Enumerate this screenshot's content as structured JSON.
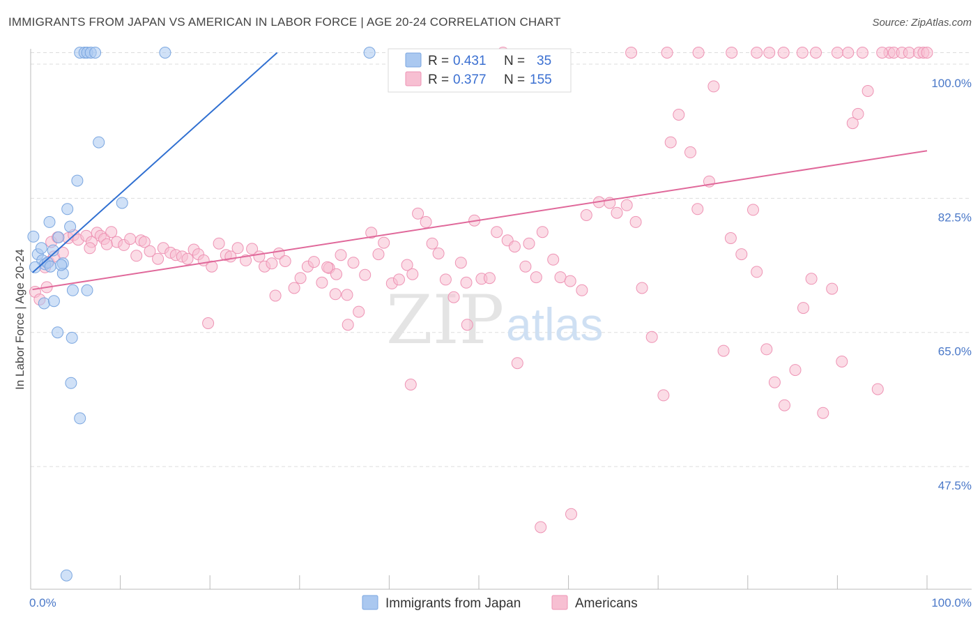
{
  "title": "IMMIGRANTS FROM JAPAN VS AMERICAN IN LABOR FORCE | AGE 20-24 CORRELATION CHART",
  "source": "Source: ZipAtlas.com",
  "watermark": {
    "zip": "ZIP",
    "atlas": "atlas"
  },
  "colors": {
    "japan_fill": "#aac8f0",
    "japan_stroke": "#7aa6e0",
    "japan_line": "#2f6fd1",
    "american_fill": "#f7bfd2",
    "american_stroke": "#ee93b4",
    "american_line": "#e0689a",
    "tick_text": "#4a78c8"
  },
  "legend_top": {
    "r_label": "R =",
    "n_label": "N =",
    "rows": [
      {
        "series": "Immigrants from Japan",
        "r": "0.431",
        "n": "35"
      },
      {
        "series": "Americans",
        "r": "0.377",
        "n": "155"
      }
    ]
  },
  "chart_data": {
    "type": "scatter",
    "title": "IMMIGRANTS FROM JAPAN VS AMERICAN IN LABOR FORCE | AGE 20-24 CORRELATION CHART",
    "xlabel": "",
    "ylabel": "In Labor Force | Age 20-24",
    "xlim": [
      0,
      100
    ],
    "ylim": [
      31.5,
      102
    ],
    "x_tick_labels": [
      "0.0%",
      "100.0%"
    ],
    "y_ticks": [
      {
        "value": 100.0,
        "label": "100.0%"
      },
      {
        "value": 82.5,
        "label": "82.5%"
      },
      {
        "value": 65.0,
        "label": "65.0%"
      },
      {
        "value": 47.5,
        "label": "47.5%"
      }
    ],
    "grid": true,
    "legend": "top-center",
    "series": [
      {
        "name": "Immigrants from Japan",
        "trend": {
          "x1": 0.2,
          "y1": 72.8,
          "x2": 27.5,
          "y2": 101.5
        },
        "points": [
          [
            0.3,
            77.5
          ],
          [
            0.8,
            75.2
          ],
          [
            1.2,
            76.0
          ],
          [
            1.3,
            74.4
          ],
          [
            1.6,
            73.9
          ],
          [
            1.9,
            74.1
          ],
          [
            1.5,
            68.8
          ],
          [
            2.1,
            79.4
          ],
          [
            2.2,
            73.6
          ],
          [
            2.5,
            75.7
          ],
          [
            2.6,
            69.1
          ],
          [
            3.0,
            65.0
          ],
          [
            3.1,
            77.4
          ],
          [
            3.6,
            72.7
          ],
          [
            3.6,
            74.0
          ],
          [
            4.1,
            81.1
          ],
          [
            4.4,
            78.8
          ],
          [
            4.7,
            70.5
          ],
          [
            4.6,
            64.3
          ],
          [
            4.5,
            58.4
          ],
          [
            5.2,
            84.8
          ],
          [
            5.5,
            53.8
          ],
          [
            6.3,
            70.5
          ],
          [
            7.6,
            89.8
          ],
          [
            10.2,
            81.9
          ],
          [
            4.0,
            33.3
          ],
          [
            5.5,
            101.5
          ],
          [
            6.0,
            101.5
          ],
          [
            6.3,
            101.5
          ],
          [
            6.7,
            101.5
          ],
          [
            7.2,
            101.5
          ],
          [
            15.0,
            101.5
          ],
          [
            37.8,
            101.5
          ],
          [
            0.5,
            73.5
          ],
          [
            3.4,
            73.8
          ]
        ]
      },
      {
        "name": "Americans",
        "trend": {
          "x1": 0.2,
          "y1": 70.6,
          "x2": 100.0,
          "y2": 88.7
        },
        "points": [
          [
            0.5,
            70.3
          ],
          [
            1.0,
            69.3
          ],
          [
            1.6,
            73.5
          ],
          [
            2.0,
            74.2
          ],
          [
            2.3,
            76.8
          ],
          [
            2.6,
            74.9
          ],
          [
            3.0,
            77.4
          ],
          [
            3.6,
            75.4
          ],
          [
            4.2,
            77.3
          ],
          [
            4.8,
            77.7
          ],
          [
            5.3,
            77.1
          ],
          [
            6.2,
            77.6
          ],
          [
            6.8,
            76.8
          ],
          [
            7.4,
            78.0
          ],
          [
            7.8,
            77.6
          ],
          [
            8.2,
            77.2
          ],
          [
            9.0,
            78.1
          ],
          [
            9.6,
            76.8
          ],
          [
            10.4,
            76.4
          ],
          [
            11.1,
            77.2
          ],
          [
            11.8,
            75.0
          ],
          [
            12.3,
            77.0
          ],
          [
            12.7,
            76.8
          ],
          [
            13.3,
            75.6
          ],
          [
            14.2,
            74.6
          ],
          [
            14.8,
            76.0
          ],
          [
            15.6,
            75.4
          ],
          [
            16.2,
            75.1
          ],
          [
            16.9,
            74.9
          ],
          [
            17.5,
            74.6
          ],
          [
            18.2,
            75.8
          ],
          [
            18.7,
            75.2
          ],
          [
            19.3,
            74.4
          ],
          [
            20.2,
            73.6
          ],
          [
            21.0,
            76.6
          ],
          [
            21.8,
            75.1
          ],
          [
            22.3,
            74.9
          ],
          [
            23.1,
            76.0
          ],
          [
            24.0,
            74.4
          ],
          [
            24.7,
            75.9
          ],
          [
            25.5,
            74.9
          ],
          [
            26.1,
            73.6
          ],
          [
            26.9,
            74.0
          ],
          [
            27.7,
            75.3
          ],
          [
            28.4,
            74.3
          ],
          [
            29.4,
            70.8
          ],
          [
            30.1,
            72.1
          ],
          [
            30.9,
            73.6
          ],
          [
            31.6,
            74.2
          ],
          [
            32.5,
            71.5
          ],
          [
            33.3,
            73.4
          ],
          [
            34.1,
            72.6
          ],
          [
            34.6,
            75.1
          ],
          [
            35.3,
            69.9
          ],
          [
            36.0,
            74.1
          ],
          [
            36.6,
            67.7
          ],
          [
            37.3,
            72.5
          ],
          [
            38.0,
            78.0
          ],
          [
            38.8,
            75.2
          ],
          [
            39.4,
            76.7
          ],
          [
            40.3,
            71.4
          ],
          [
            41.1,
            71.9
          ],
          [
            42.0,
            73.8
          ],
          [
            42.6,
            72.6
          ],
          [
            43.2,
            80.5
          ],
          [
            44.1,
            79.4
          ],
          [
            44.8,
            76.6
          ],
          [
            45.5,
            75.3
          ],
          [
            46.3,
            71.9
          ],
          [
            47.2,
            69.6
          ],
          [
            48.0,
            74.1
          ],
          [
            48.6,
            71.5
          ],
          [
            49.5,
            79.6
          ],
          [
            50.3,
            72.0
          ],
          [
            51.2,
            72.1
          ],
          [
            52.0,
            78.1
          ],
          [
            53.2,
            77.0
          ],
          [
            54.0,
            76.2
          ],
          [
            55.2,
            73.6
          ],
          [
            56.4,
            72.2
          ],
          [
            57.1,
            78.1
          ],
          [
            58.3,
            74.5
          ],
          [
            59.1,
            72.2
          ],
          [
            60.2,
            71.7
          ],
          [
            61.5,
            70.5
          ],
          [
            62.0,
            80.3
          ],
          [
            63.4,
            82.0
          ],
          [
            64.6,
            81.9
          ],
          [
            65.4,
            80.6
          ],
          [
            66.5,
            81.6
          ],
          [
            67.5,
            79.4
          ],
          [
            68.2,
            70.8
          ],
          [
            69.3,
            64.4
          ],
          [
            70.6,
            56.8
          ],
          [
            71.4,
            89.8
          ],
          [
            72.3,
            93.4
          ],
          [
            73.6,
            88.5
          ],
          [
            74.4,
            81.1
          ],
          [
            75.7,
            84.7
          ],
          [
            76.2,
            97.1
          ],
          [
            77.3,
            62.6
          ],
          [
            78.1,
            77.3
          ],
          [
            79.3,
            75.2
          ],
          [
            80.6,
            81.0
          ],
          [
            81.0,
            72.9
          ],
          [
            82.1,
            62.8
          ],
          [
            83.0,
            58.5
          ],
          [
            84.1,
            55.5
          ],
          [
            85.3,
            60.1
          ],
          [
            86.2,
            68.2
          ],
          [
            87.1,
            72.0
          ],
          [
            88.4,
            54.5
          ],
          [
            89.4,
            70.7
          ],
          [
            90.5,
            61.2
          ],
          [
            91.7,
            92.3
          ],
          [
            92.3,
            93.5
          ],
          [
            93.4,
            96.5
          ],
          [
            94.5,
            57.6
          ],
          [
            95.8,
            101.5
          ],
          [
            96.3,
            101.5
          ],
          [
            97.2,
            101.5
          ],
          [
            98.0,
            101.5
          ],
          [
            99.1,
            101.5
          ],
          [
            99.6,
            101.5
          ],
          [
            100.0,
            101.5
          ],
          [
            67.0,
            101.5
          ],
          [
            71.0,
            101.5
          ],
          [
            74.5,
            101.5
          ],
          [
            78.2,
            101.5
          ],
          [
            81.0,
            101.5
          ],
          [
            82.4,
            101.5
          ],
          [
            84.0,
            101.5
          ],
          [
            86.1,
            101.5
          ],
          [
            87.6,
            101.5
          ],
          [
            90.0,
            101.5
          ],
          [
            91.2,
            101.5
          ],
          [
            92.8,
            101.5
          ],
          [
            95.0,
            101.5
          ],
          [
            52.7,
            101.5
          ],
          [
            49.2,
            100.6
          ],
          [
            56.0,
            99.5
          ],
          [
            56.9,
            39.6
          ],
          [
            60.3,
            41.3
          ],
          [
            54.3,
            61.0
          ],
          [
            42.4,
            58.2
          ],
          [
            35.4,
            66.0
          ],
          [
            34.0,
            70.0
          ],
          [
            33.1,
            73.5
          ],
          [
            27.3,
            69.8
          ],
          [
            19.8,
            66.2
          ],
          [
            8.5,
            76.5
          ],
          [
            6.6,
            76.0
          ],
          [
            1.8,
            70.9
          ],
          [
            55.6,
            76.6
          ],
          [
            48.7,
            66.0
          ]
        ]
      }
    ]
  },
  "bottom_legend": [
    {
      "label": "Immigrants from Japan"
    },
    {
      "label": "Americans"
    }
  ]
}
